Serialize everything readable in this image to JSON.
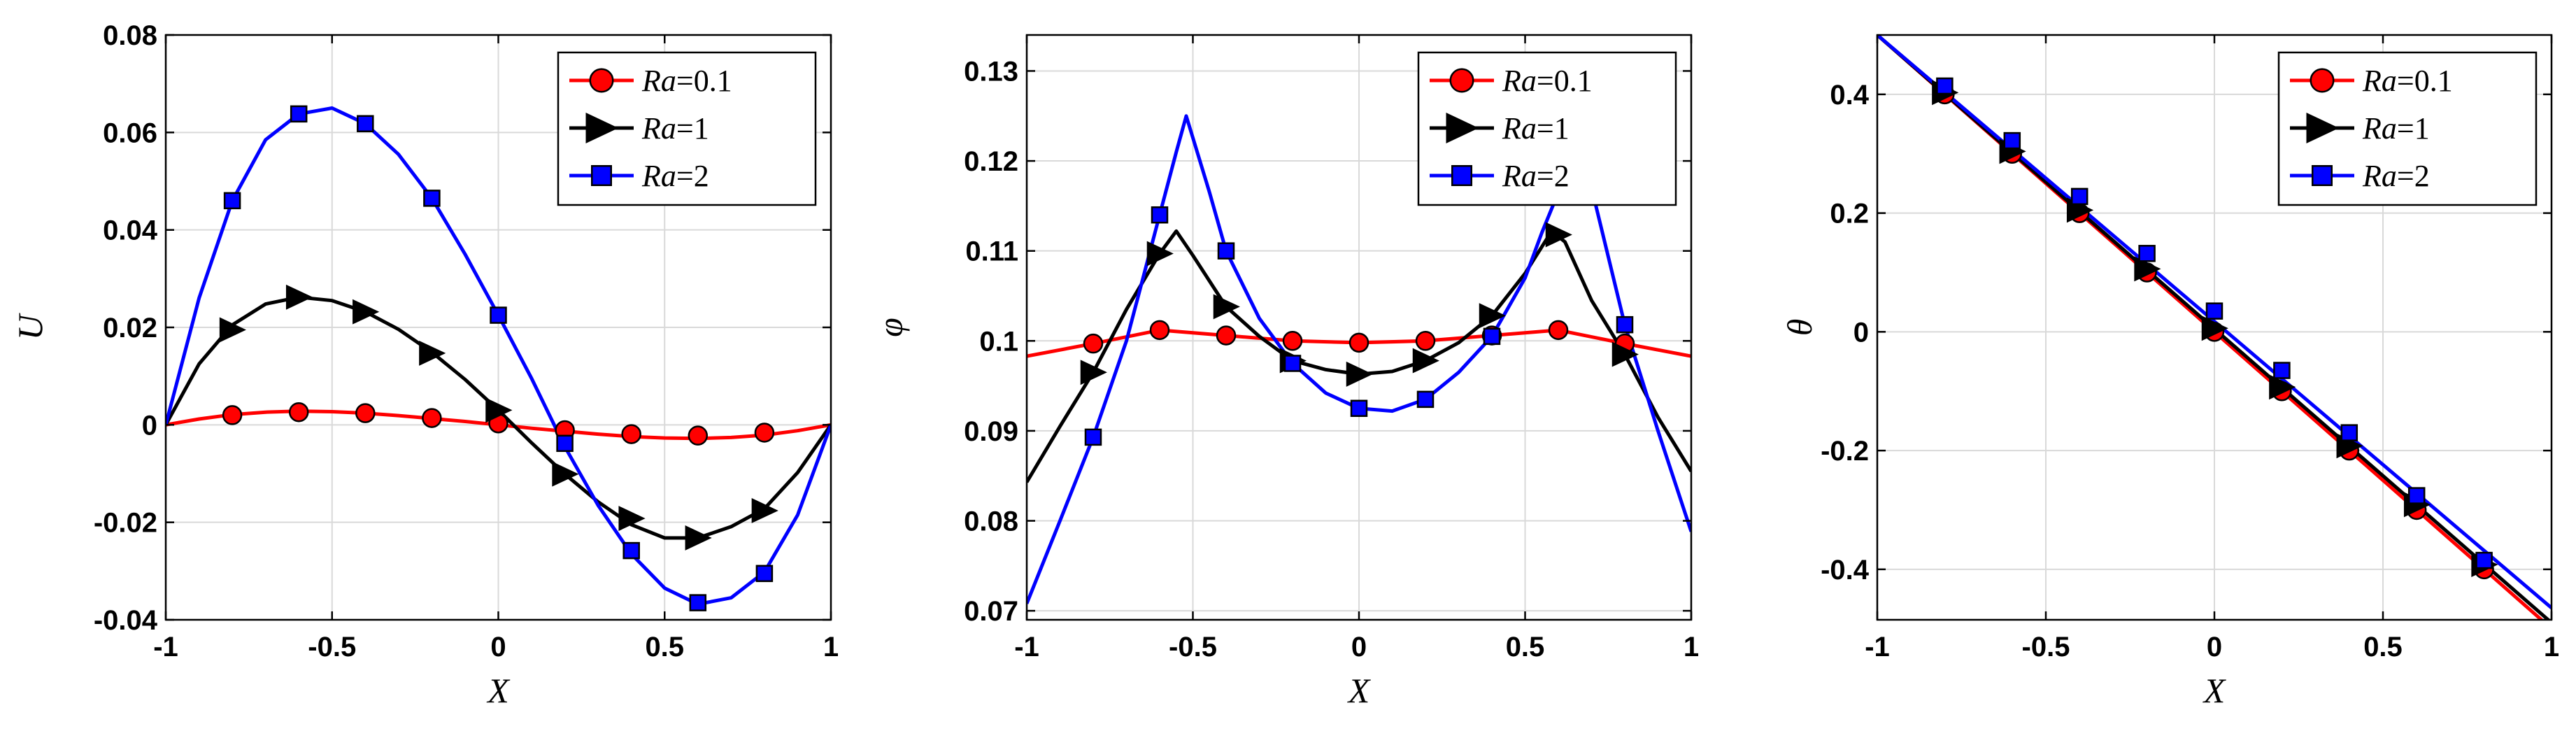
{
  "colors": {
    "ra01": "#ff0000",
    "ra1": "#000000",
    "ra2": "#0000ff"
  },
  "chart_data": [
    {
      "type": "line",
      "id": "u",
      "xlabel": "X",
      "ylabel": "U",
      "xlim": [
        -1,
        1
      ],
      "ylim": [
        -0.04,
        0.08
      ],
      "xticks": [
        -1,
        -0.5,
        0,
        0.5,
        1
      ],
      "xtick_labels": [
        "-1",
        "-0.5",
        "0",
        "0.5",
        "1"
      ],
      "yticks": [
        -0.04,
        -0.02,
        0,
        0.02,
        0.04,
        0.06,
        0.08
      ],
      "ytick_labels": [
        "-0.04",
        "-0.02",
        "0",
        "0.02",
        "0.04",
        "0.06",
        "0.08"
      ],
      "grid": true,
      "legend": "top-right",
      "series": [
        {
          "name": "Ra=0.1",
          "legend_italic": "Ra",
          "legend_rest": "=0.1",
          "marker": "circle",
          "color": "#ff0000",
          "x": [
            -1,
            -0.9,
            -0.8,
            -0.7,
            -0.6,
            -0.5,
            -0.4,
            -0.3,
            -0.2,
            -0.1,
            0,
            0.1,
            0.2,
            0.3,
            0.4,
            0.5,
            0.6,
            0.7,
            0.8,
            0.9,
            1
          ],
          "y": [
            0,
            0.0012,
            0.0021,
            0.0026,
            0.0028,
            0.0027,
            0.0024,
            0.0019,
            0.0013,
            0.0007,
            0,
            -0.0007,
            -0.0013,
            -0.0019,
            -0.0024,
            -0.0027,
            -0.0028,
            -0.0026,
            -0.0021,
            -0.0012,
            0
          ],
          "markers_x": [
            -0.8,
            -0.6,
            -0.4,
            -0.2,
            0,
            0.2,
            0.4,
            0.6,
            0.8
          ],
          "markers_y": [
            0.002,
            0.0026,
            0.0024,
            0.0014,
            0.0003,
            -0.0011,
            -0.0019,
            -0.0022,
            -0.0016
          ]
        },
        {
          "name": "Ra=1",
          "legend_italic": "Ra",
          "legend_rest": "=1",
          "marker": "triangle-right",
          "color": "#000000",
          "x": [
            -1,
            -0.9,
            -0.8,
            -0.7,
            -0.6,
            -0.5,
            -0.4,
            -0.3,
            -0.2,
            -0.1,
            0,
            0.1,
            0.2,
            0.3,
            0.4,
            0.5,
            0.6,
            0.7,
            0.8,
            0.9,
            1
          ],
          "y": [
            0,
            0.0125,
            0.0205,
            0.0248,
            0.0262,
            0.0255,
            0.0232,
            0.0196,
            0.0149,
            0.0093,
            0.003,
            -0.0037,
            -0.0101,
            -0.0158,
            -0.0205,
            -0.0232,
            -0.0232,
            -0.0209,
            -0.0172,
            -0.0098,
            0
          ],
          "markers_x": [
            -0.8,
            -0.6,
            -0.4,
            -0.2,
            0,
            0.2,
            0.4,
            0.6,
            0.8
          ],
          "markers_y": [
            0.0195,
            0.0262,
            0.0232,
            0.0147,
            0.003,
            -0.0101,
            -0.0192,
            -0.0232,
            -0.0176
          ]
        },
        {
          "name": "Ra=2",
          "legend_italic": "Ra",
          "legend_rest": "=2",
          "marker": "square",
          "color": "#0000ff",
          "x": [
            -1,
            -0.9,
            -0.8,
            -0.7,
            -0.6,
            -0.5,
            -0.4,
            -0.3,
            -0.2,
            -0.1,
            0,
            0.1,
            0.2,
            0.3,
            0.4,
            0.5,
            0.6,
            0.7,
            0.8,
            0.9,
            1
          ],
          "y": [
            0,
            0.026,
            0.046,
            0.0585,
            0.0638,
            0.065,
            0.0618,
            0.0555,
            0.0465,
            0.035,
            0.0225,
            0.0095,
            -0.0045,
            -0.0165,
            -0.0265,
            -0.0335,
            -0.0368,
            -0.0355,
            -0.0302,
            -0.0185,
            0
          ],
          "markers_x": [
            -0.8,
            -0.6,
            -0.4,
            -0.2,
            0,
            0.2,
            0.4,
            0.6,
            0.8
          ],
          "markers_y": [
            0.046,
            0.0638,
            0.0618,
            0.0465,
            0.0225,
            -0.0038,
            -0.0258,
            -0.0365,
            -0.0305
          ]
        }
      ]
    },
    {
      "type": "line",
      "id": "phi",
      "xlabel": "X",
      "ylabel": "φ",
      "xlim": [
        -1,
        1
      ],
      "ylim": [
        0.069,
        0.134
      ],
      "xticks": [
        -1,
        -0.5,
        0,
        0.5,
        1
      ],
      "xtick_labels": [
        "-1",
        "-0.5",
        "0",
        "0.5",
        "1"
      ],
      "yticks": [
        0.07,
        0.08,
        0.09,
        0.1,
        0.11,
        0.12,
        0.13
      ],
      "ytick_labels": [
        "0.07",
        "0.08",
        "0.09",
        "0.1",
        "0.11",
        "0.12",
        "0.13"
      ],
      "grid": true,
      "legend": "top-right",
      "series": [
        {
          "name": "Ra=0.1",
          "legend_italic": "Ra",
          "legend_rest": "=0.1",
          "marker": "circle",
          "color": "#ff0000",
          "x": [
            -1,
            -0.8,
            -0.6,
            -0.4,
            -0.2,
            0,
            0.2,
            0.4,
            0.6,
            0.8,
            1
          ],
          "y": [
            0.0983,
            0.0997,
            0.1012,
            0.1006,
            0.1,
            0.0998,
            0.1,
            0.1006,
            0.1012,
            0.0997,
            0.0983
          ],
          "markers_x": [
            -0.8,
            -0.6,
            -0.4,
            -0.2,
            0,
            0.2,
            0.4,
            0.6,
            0.8
          ],
          "markers_y": [
            0.0997,
            0.1012,
            0.1006,
            0.1,
            0.0998,
            0.1,
            0.1006,
            0.1012,
            0.0997
          ]
        },
        {
          "name": "Ra=1",
          "legend_italic": "Ra",
          "legend_rest": "=1",
          "marker": "triangle-right",
          "color": "#000000",
          "x": [
            -1,
            -0.9,
            -0.8,
            -0.7,
            -0.6,
            -0.55,
            -0.5,
            -0.4,
            -0.3,
            -0.2,
            -0.1,
            0,
            0.1,
            0.2,
            0.3,
            0.4,
            0.5,
            0.58,
            0.62,
            0.7,
            0.8,
            0.9,
            1
          ],
          "y": [
            0.0843,
            0.0905,
            0.0965,
            0.1035,
            0.1097,
            0.1122,
            0.1095,
            0.1038,
            0.1005,
            0.0978,
            0.0968,
            0.0963,
            0.0966,
            0.0978,
            0.0998,
            0.1028,
            0.1075,
            0.1122,
            0.111,
            0.1045,
            0.0985,
            0.0915,
            0.0855
          ],
          "markers_x": [
            -0.8,
            -0.6,
            -0.4,
            -0.2,
            0,
            0.2,
            0.4,
            0.6,
            0.8
          ],
          "markers_y": [
            0.0965,
            0.1097,
            0.1038,
            0.0978,
            0.0963,
            0.0978,
            0.1028,
            0.1118,
            0.0985
          ]
        },
        {
          "name": "Ra=2",
          "legend_italic": "Ra",
          "legend_rest": "=2",
          "marker": "square",
          "color": "#0000ff",
          "x": [
            -1,
            -0.9,
            -0.8,
            -0.7,
            -0.6,
            -0.55,
            -0.52,
            -0.45,
            -0.4,
            -0.3,
            -0.2,
            -0.1,
            0,
            0.1,
            0.2,
            0.3,
            0.4,
            0.5,
            0.55,
            0.6,
            0.65,
            0.7,
            0.8,
            0.9,
            1
          ],
          "y": [
            0.0708,
            0.08,
            0.0893,
            0.1,
            0.114,
            0.121,
            0.125,
            0.1165,
            0.11,
            0.1025,
            0.0975,
            0.0942,
            0.0925,
            0.0922,
            0.0935,
            0.0965,
            0.1005,
            0.107,
            0.112,
            0.1165,
            0.1215,
            0.117,
            0.1018,
            0.09,
            0.0788
          ],
          "markers_x": [
            -0.8,
            -0.6,
            -0.4,
            -0.2,
            0,
            0.2,
            0.4,
            0.8
          ],
          "markers_y": [
            0.0893,
            0.114,
            0.11,
            0.0975,
            0.0925,
            0.0935,
            0.1005,
            0.1018
          ]
        }
      ]
    },
    {
      "type": "line",
      "id": "theta",
      "xlabel": "X",
      "ylabel": "θ",
      "xlim": [
        -1,
        1
      ],
      "ylim": [
        -0.485,
        0.5
      ],
      "xticks": [
        -1,
        -0.5,
        0,
        0.5,
        1
      ],
      "xtick_labels": [
        "-1",
        "-0.5",
        "0",
        "0.5",
        "1"
      ],
      "yticks": [
        -0.4,
        -0.2,
        0,
        0.2,
        0.4
      ],
      "ytick_labels": [
        "-0.4",
        "-0.2",
        "0",
        "0.2",
        "0.4"
      ],
      "grid": true,
      "legend": "top-right",
      "series": [
        {
          "name": "Ra=0.1",
          "legend_italic": "Ra",
          "legend_rest": "=0.1",
          "marker": "circle",
          "color": "#ff0000",
          "x": [
            -1,
            1
          ],
          "y": [
            0.5,
            -0.5
          ],
          "markers_x": [
            -0.8,
            -0.6,
            -0.4,
            -0.2,
            0,
            0.2,
            0.4,
            0.6,
            0.8
          ],
          "markers_y": [
            0.4,
            0.3,
            0.2,
            0.1,
            0,
            -0.1,
            -0.2,
            -0.3,
            -0.4
          ]
        },
        {
          "name": "Ra=1",
          "legend_italic": "Ra",
          "legend_rest": "=1",
          "marker": "triangle-right",
          "color": "#000000",
          "x": [
            -1,
            1
          ],
          "y": [
            0.5,
            -0.49
          ],
          "markers_x": [
            -0.8,
            -0.6,
            -0.4,
            -0.2,
            0,
            0.2,
            0.4,
            0.6,
            0.8
          ],
          "markers_y": [
            0.403,
            0.304,
            0.205,
            0.106,
            0.006,
            -0.093,
            -0.192,
            -0.291,
            -0.392
          ]
        },
        {
          "name": "Ra=2",
          "legend_italic": "Ra",
          "legend_rest": "=2",
          "marker": "square",
          "color": "#0000ff",
          "x": [
            -1,
            1
          ],
          "y": [
            0.5,
            -0.465
          ],
          "markers_x": [
            -0.8,
            -0.6,
            -0.4,
            -0.2,
            0,
            0.2,
            0.4,
            0.6,
            0.8
          ],
          "markers_y": [
            0.414,
            0.322,
            0.228,
            0.132,
            0.035,
            -0.065,
            -0.17,
            -0.276,
            -0.385
          ]
        }
      ]
    }
  ]
}
